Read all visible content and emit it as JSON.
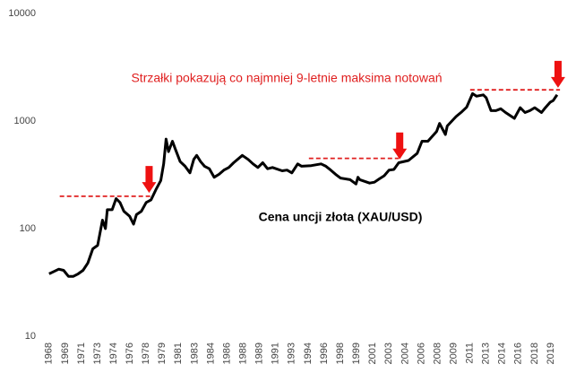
{
  "chart_data": {
    "type": "line",
    "annotation": "Strzałki pokazują co najmniej 9-letnie maksima notowań",
    "caption": "Cena uncji złota (XAU/USD)",
    "log_y": true,
    "grid": false,
    "xlim": [
      1967.1,
      2021.05
    ],
    "ylim": [
      10,
      10000
    ],
    "yticks": [
      10,
      100,
      1000,
      10000
    ],
    "xticks": [
      {
        "value": 1968,
        "label": "1968"
      },
      {
        "value": 1969.67,
        "label": "1969"
      },
      {
        "value": 1971.33,
        "label": "1971"
      },
      {
        "value": 1973,
        "label": "1973"
      },
      {
        "value": 1974.67,
        "label": "1974"
      },
      {
        "value": 1976.33,
        "label": "1976"
      },
      {
        "value": 1978,
        "label": "1978"
      },
      {
        "value": 1979.67,
        "label": "1979"
      },
      {
        "value": 1981.33,
        "label": "1981"
      },
      {
        "value": 1983,
        "label": "1983"
      },
      {
        "value": 1984.67,
        "label": "1984"
      },
      {
        "value": 1986.33,
        "label": "1986"
      },
      {
        "value": 1988,
        "label": "1988"
      },
      {
        "value": 1989.67,
        "label": "1989"
      },
      {
        "value": 1991.33,
        "label": "1991"
      },
      {
        "value": 1993,
        "label": "1993"
      },
      {
        "value": 1994.67,
        "label": "1994"
      },
      {
        "value": 1996.33,
        "label": "1996"
      },
      {
        "value": 1998,
        "label": "1998"
      },
      {
        "value": 1999.67,
        "label": "1999"
      },
      {
        "value": 2001.33,
        "label": "2001"
      },
      {
        "value": 2003,
        "label": "2003"
      },
      {
        "value": 2004.67,
        "label": "2004"
      },
      {
        "value": 2006.33,
        "label": "2006"
      },
      {
        "value": 2008,
        "label": "2008"
      },
      {
        "value": 2009.67,
        "label": "2009"
      },
      {
        "value": 2011.33,
        "label": "2011"
      },
      {
        "value": 2013,
        "label": "2013"
      },
      {
        "value": 2014.67,
        "label": "2014"
      },
      {
        "value": 2016.33,
        "label": "2016"
      },
      {
        "value": 2018,
        "label": "2018"
      },
      {
        "value": 2019.67,
        "label": "2019"
      }
    ],
    "color": "#000000",
    "x": [
      1968,
      1968.5,
      1969,
      1969.5,
      1970,
      1970.5,
      1971,
      1971.5,
      1972,
      1972.5,
      1973,
      1973.5,
      1973.8,
      1974,
      1974.5,
      1974.9,
      1975.3,
      1975.7,
      1976.3,
      1976.7,
      1977,
      1977.5,
      1978,
      1978.5,
      1979,
      1979.5,
      1979.8,
      1980.05,
      1980.3,
      1980.7,
      1981,
      1981.5,
      1982,
      1982.5,
      1982.9,
      1983.2,
      1983.6,
      1984,
      1984.5,
      1985,
      1985.5,
      1986,
      1986.5,
      1987,
      1987.9,
      1988.5,
      1989,
      1989.5,
      1990,
      1990.5,
      1991,
      1992,
      1992.5,
      1993,
      1993.6,
      1994,
      1995,
      1996,
      1996.5,
      1997,
      1997.5,
      1998,
      1999,
      1999.6,
      1999.8,
      2000,
      2001,
      2001.5,
      2002,
      2002.5,
      2003,
      2003.5,
      2004,
      2005,
      2005.9,
      2006.4,
      2007,
      2007.9,
      2008.2,
      2008.8,
      2009,
      2009.9,
      2010.5,
      2011,
      2011.6,
      2012,
      2012.7,
      2013,
      2013.5,
      2014,
      2014.5,
      2015,
      2015.9,
      2016.5,
      2017,
      2017.5,
      2018,
      2018.7,
      2019,
      2019.6,
      2019.9,
      2020.1,
      2020.3
    ],
    "values": [
      38,
      40,
      42,
      41,
      36,
      36,
      38,
      41,
      48,
      65,
      70,
      120,
      100,
      150,
      150,
      190,
      175,
      145,
      130,
      110,
      135,
      145,
      175,
      185,
      230,
      280,
      400,
      680,
      520,
      650,
      550,
      420,
      380,
      330,
      440,
      480,
      420,
      380,
      360,
      300,
      320,
      350,
      370,
      410,
      480,
      440,
      400,
      370,
      410,
      360,
      370,
      345,
      350,
      330,
      400,
      380,
      385,
      400,
      380,
      350,
      320,
      295,
      285,
      260,
      300,
      285,
      265,
      270,
      290,
      310,
      350,
      355,
      410,
      430,
      500,
      650,
      650,
      800,
      950,
      750,
      900,
      1100,
      1220,
      1350,
      1800,
      1700,
      1750,
      1650,
      1250,
      1250,
      1300,
      1200,
      1060,
      1330,
      1200,
      1250,
      1330,
      1200,
      1300,
      1500,
      1550,
      1650,
      1750
    ],
    "levels": [
      {
        "y": 200,
        "x": [
          1969.1,
          1978.6
        ]
      },
      {
        "y": 450,
        "x": [
          1994.75,
          2004.0
        ]
      },
      {
        "y": 1950,
        "x": [
          2011.35,
          2020.6
        ]
      }
    ],
    "arrows": [
      {
        "x": 1978.3,
        "y": 215
      },
      {
        "x": 2004.1,
        "y": 440
      },
      {
        "x": 2020.4,
        "y": 2040
      }
    ]
  }
}
